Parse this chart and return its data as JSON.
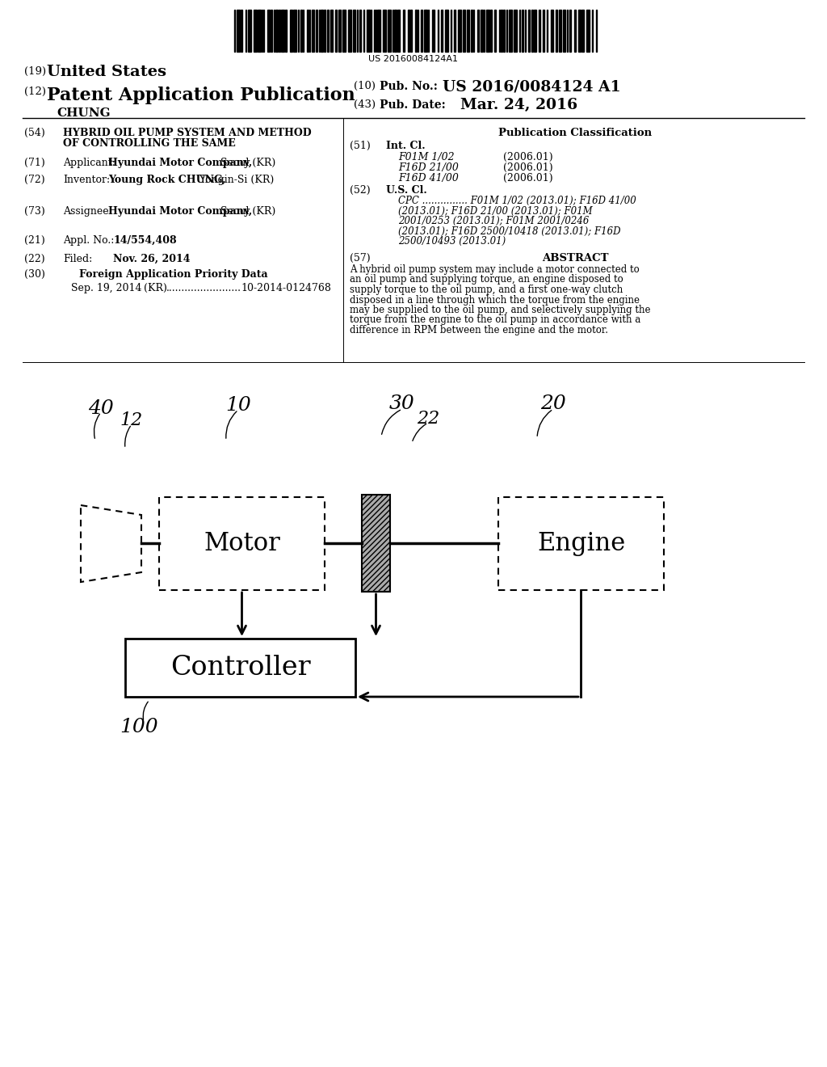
{
  "bg_color": "#ffffff",
  "barcode_text": "US 20160084124A1",
  "header": {
    "us_label": "(19) United States",
    "pub_label": "(12) Patent Application Publication",
    "name": "CHUNG",
    "pub_no_label": "(10) Pub. No.:",
    "pub_no": "US 2016/0084124 A1",
    "pub_date_label": "(43) Pub. Date:",
    "pub_date": "Mar. 24, 2016"
  },
  "left_col": {
    "title_num": "(54)",
    "title_line1": "HYBRID OIL PUMP SYSTEM AND METHOD",
    "title_line2": "OF CONTROLLING THE SAME",
    "applicant_num": "(71)",
    "inventor_num": "(72)",
    "assignee_num": "(73)",
    "appl_num": "(21)",
    "filed_num": "(22)",
    "foreign_num": "(30)",
    "priority": "Sep. 19, 2014    (KR) ........................ 10-2014-0124768"
  },
  "right_col": {
    "pub_class": "Publication Classification",
    "intcl_num": "(51)",
    "intcl_label": "Int. Cl.",
    "intcl_items": [
      [
        "F01M 1/02",
        "(2006.01)"
      ],
      [
        "F16D 21/00",
        "(2006.01)"
      ],
      [
        "F16D 41/00",
        "(2006.01)"
      ]
    ],
    "uscl_num": "(52)",
    "uscl_label": "U.S. Cl.",
    "cpc_lines": [
      "CPC ............... F01M 1/02 (2013.01); F16D 41/00",
      "(2013.01); F16D 21/00 (2013.01); F01M",
      "2001/0253 (2013.01); F01M 2001/0246",
      "(2013.01); F16D 2500/10418 (2013.01); F16D",
      "2500/10493 (2013.01)"
    ],
    "abstract_num": "(57)",
    "abstract_title": "ABSTRACT",
    "abstract_lines": [
      "A hybrid oil pump system may include a motor connected to",
      "an oil pump and supplying torque, an engine disposed to",
      "supply torque to the oil pump, and a first one-way clutch",
      "disposed in a line through which the torque from the engine",
      "may be supplied to the oil pump, and selectively supplying the",
      "torque from the engine to the oil pump in accordance with a",
      "difference in RPM between the engine and the motor."
    ]
  },
  "diagram": {
    "motor_label": "Motor",
    "engine_label": "Engine",
    "controller_label": "Controller"
  }
}
